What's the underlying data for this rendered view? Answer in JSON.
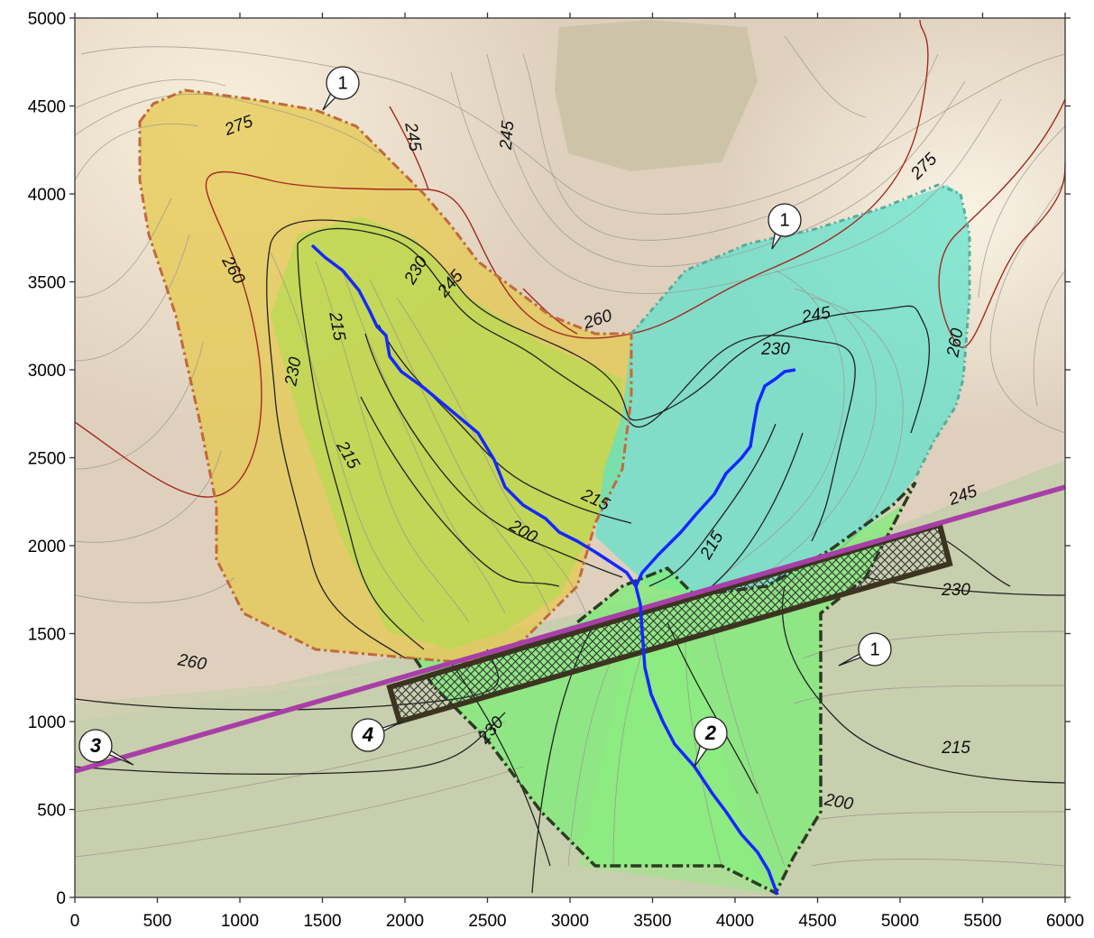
{
  "x_axis": {
    "ticks": [
      "0",
      "500",
      "1000",
      "1500",
      "2000",
      "2500",
      "3000",
      "3500",
      "4000",
      "4500",
      "5000",
      "5500",
      "6000"
    ]
  },
  "y_axis": {
    "ticks": [
      "0",
      "500",
      "1000",
      "1500",
      "2000",
      "2500",
      "3000",
      "3500",
      "4000",
      "4500",
      "5000"
    ]
  },
  "contour_labels": [
    "275",
    "260",
    "245",
    "230",
    "215",
    "200"
  ],
  "contour_label_instances": [
    {
      "text": "275"
    },
    {
      "text": "260"
    },
    {
      "text": "245"
    },
    {
      "text": "245"
    },
    {
      "text": "230"
    },
    {
      "text": "215"
    },
    {
      "text": "230"
    },
    {
      "text": "215"
    },
    {
      "text": "200"
    },
    {
      "text": "260"
    },
    {
      "text": "245"
    },
    {
      "text": "230"
    },
    {
      "text": "215"
    },
    {
      "text": "260"
    },
    {
      "text": "275"
    },
    {
      "text": "260"
    },
    {
      "text": "245"
    },
    {
      "text": "245"
    },
    {
      "text": "230"
    },
    {
      "text": "215"
    },
    {
      "text": "215"
    },
    {
      "text": "200"
    },
    {
      "text": "230"
    }
  ],
  "callouts": [
    {
      "text": "1"
    },
    {
      "text": "1"
    },
    {
      "text": "1"
    },
    {
      "text": "2"
    },
    {
      "text": "3"
    },
    {
      "text": "4"
    }
  ],
  "colors": {
    "stream": "#1428ff",
    "road": "#a040a0",
    "basin_yellow": "#e6d24a",
    "basin_cyan": "#4fe0c8",
    "basin_green": "#7de67d",
    "contour_major": "#222222",
    "contour_red": "#a02020"
  }
}
